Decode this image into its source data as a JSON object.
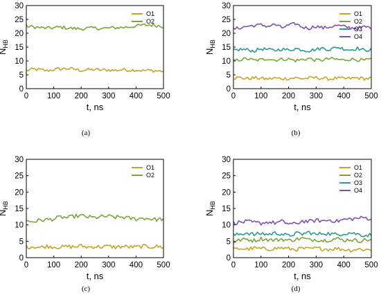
{
  "chart_data": [
    {
      "type": "line",
      "panel_label": "(a)",
      "xlabel": "t, ns",
      "ylabel": "N",
      "ylabel_sub": "HB",
      "xlim": [
        0,
        500
      ],
      "ylim": [
        0,
        30
      ],
      "xticks": [
        0,
        100,
        200,
        300,
        400,
        500
      ],
      "yticks": [
        0,
        5,
        10,
        15,
        20,
        25,
        30
      ],
      "legend_position": "top-right",
      "x": [
        0,
        25,
        50,
        75,
        100,
        125,
        150,
        175,
        200,
        225,
        250,
        275,
        300,
        325,
        350,
        375,
        400,
        425,
        450,
        475,
        500
      ],
      "series": [
        {
          "name": "O1",
          "color": "#c9a227",
          "values": [
            6.5,
            7.0,
            6.8,
            6.5,
            6.9,
            7.1,
            7.3,
            7.0,
            6.6,
            6.8,
            6.9,
            6.7,
            6.8,
            6.6,
            6.9,
            6.7,
            6.8,
            6.5,
            6.6,
            6.4,
            6.3
          ]
        },
        {
          "name": "O2",
          "color": "#7da23c",
          "values": [
            22.5,
            22.3,
            22.0,
            21.8,
            22.0,
            22.2,
            21.9,
            21.7,
            21.6,
            21.8,
            21.9,
            21.7,
            21.9,
            22.0,
            22.1,
            22.3,
            22.6,
            22.9,
            23.0,
            22.8,
            22.4
          ]
        }
      ]
    },
    {
      "type": "line",
      "panel_label": "(b)",
      "xlabel": "t, ns",
      "ylabel": "N",
      "ylabel_sub": "HB",
      "xlim": [
        0,
        500
      ],
      "ylim": [
        0,
        30
      ],
      "xticks": [
        0,
        100,
        200,
        300,
        400,
        500
      ],
      "yticks": [
        0,
        5,
        10,
        15,
        20,
        25,
        30
      ],
      "legend_position": "top-right",
      "x": [
        0,
        25,
        50,
        75,
        100,
        125,
        150,
        175,
        200,
        225,
        250,
        275,
        300,
        325,
        350,
        375,
        400,
        425,
        450,
        475,
        500
      ],
      "series": [
        {
          "name": "O1",
          "color": "#c9a227",
          "values": [
            3.8,
            4.0,
            3.6,
            3.9,
            3.7,
            3.5,
            3.8,
            3.6,
            3.7,
            3.9,
            3.6,
            3.8,
            4.0,
            3.7,
            3.5,
            3.8,
            3.6,
            3.7,
            3.9,
            3.6,
            3.7
          ]
        },
        {
          "name": "O2",
          "color": "#7da23c",
          "values": [
            10.0,
            10.5,
            10.8,
            10.2,
            10.4,
            10.9,
            10.3,
            10.6,
            10.7,
            10.1,
            10.5,
            10.9,
            10.2,
            10.4,
            10.8,
            10.6,
            10.3,
            10.7,
            10.4,
            10.2,
            10.6
          ]
        },
        {
          "name": "O3",
          "color": "#2a9a8c",
          "values": [
            13.8,
            14.2,
            14.0,
            13.6,
            14.4,
            14.1,
            13.8,
            14.3,
            13.9,
            14.5,
            14.0,
            13.7,
            14.2,
            14.6,
            14.1,
            15.0,
            14.4,
            14.0,
            14.6,
            13.8,
            14.2
          ]
        },
        {
          "name": "O4",
          "color": "#7f4fb0",
          "values": [
            21.5,
            22.0,
            22.5,
            22.8,
            23.0,
            22.5,
            23.2,
            22.0,
            22.8,
            23.5,
            22.2,
            21.8,
            22.6,
            21.9,
            22.3,
            22.8,
            22.4,
            22.0,
            21.8,
            22.3,
            22.0
          ]
        }
      ]
    },
    {
      "type": "line",
      "panel_label": "(c)",
      "xlabel": "t, ns",
      "ylabel": "N",
      "ylabel_sub": "HB",
      "xlim": [
        0,
        500
      ],
      "ylim": [
        0,
        30
      ],
      "xticks": [
        0,
        100,
        200,
        300,
        400,
        500
      ],
      "yticks": [
        0,
        5,
        10,
        15,
        20,
        25,
        30
      ],
      "legend_position": "top-right",
      "x": [
        0,
        25,
        50,
        75,
        100,
        125,
        150,
        175,
        200,
        225,
        250,
        275,
        300,
        325,
        350,
        375,
        400,
        425,
        450,
        475,
        500
      ],
      "series": [
        {
          "name": "O1",
          "color": "#c9a227",
          "values": [
            3.2,
            3.4,
            3.1,
            3.5,
            3.3,
            3.2,
            3.4,
            3.3,
            3.6,
            3.2,
            3.4,
            3.3,
            3.5,
            3.2,
            3.4,
            3.3,
            3.2,
            3.5,
            3.3,
            3.4,
            3.2
          ]
        },
        {
          "name": "O2",
          "color": "#7da23c",
          "values": [
            11.2,
            11.0,
            11.4,
            11.6,
            11.8,
            12.4,
            12.2,
            12.6,
            12.8,
            12.4,
            12.2,
            12.5,
            12.6,
            12.3,
            12.4,
            12.0,
            11.8,
            12.1,
            11.9,
            11.6,
            11.8
          ]
        }
      ]
    },
    {
      "type": "line",
      "panel_label": "(d)",
      "xlabel": "t, ns",
      "ylabel": "N",
      "ylabel_sub": "HB",
      "xlim": [
        0,
        500
      ],
      "ylim": [
        0,
        30
      ],
      "xticks": [
        0,
        100,
        200,
        300,
        400,
        500
      ],
      "yticks": [
        0,
        5,
        10,
        15,
        20,
        25,
        30
      ],
      "legend_position": "top-right",
      "x": [
        0,
        25,
        50,
        75,
        100,
        125,
        150,
        175,
        200,
        225,
        250,
        275,
        300,
        325,
        350,
        375,
        400,
        425,
        450,
        475,
        500
      ],
      "series": [
        {
          "name": "O1",
          "color": "#c9a227",
          "values": [
            2.5,
            2.8,
            2.6,
            2.9,
            2.7,
            2.6,
            2.8,
            3.0,
            2.7,
            2.5,
            2.8,
            2.6,
            2.9,
            2.7,
            2.6,
            2.8,
            2.5,
            2.3,
            2.6,
            2.5,
            2.4
          ]
        },
        {
          "name": "O2",
          "color": "#7da23c",
          "values": [
            4.8,
            5.4,
            5.6,
            5.2,
            5.8,
            5.5,
            5.3,
            5.7,
            5.2,
            5.6,
            5.9,
            5.4,
            5.6,
            5.2,
            5.5,
            5.8,
            5.3,
            5.6,
            5.1,
            5.4,
            5.5
          ]
        },
        {
          "name": "O3",
          "color": "#2a9a8c",
          "values": [
            6.8,
            7.2,
            7.6,
            7.0,
            7.4,
            7.1,
            7.5,
            7.3,
            6.6,
            7.4,
            7.2,
            7.8,
            7.0,
            7.5,
            7.3,
            7.0,
            7.4,
            7.6,
            7.2,
            6.8,
            7.0
          ]
        },
        {
          "name": "O4",
          "color": "#7f4fb0",
          "values": [
            10.6,
            10.8,
            11.0,
            10.7,
            10.5,
            10.9,
            10.6,
            11.0,
            10.4,
            10.2,
            11.2,
            11.0,
            11.4,
            11.2,
            11.5,
            11.1,
            11.6,
            11.8,
            12.0,
            12.2,
            11.8
          ]
        }
      ]
    }
  ]
}
